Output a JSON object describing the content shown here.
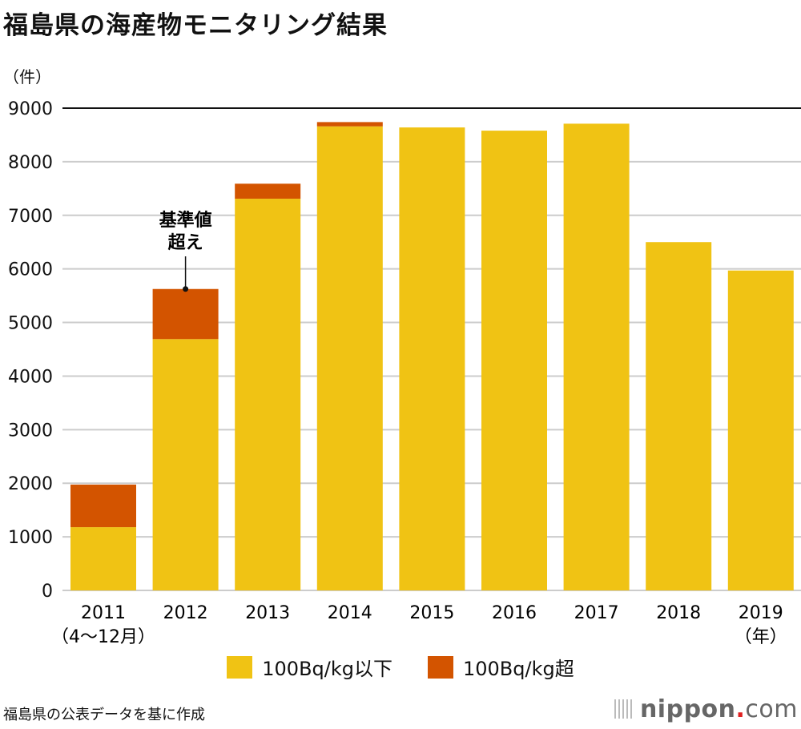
{
  "title": "福島県の海産物モニタリング結果",
  "unit_label": "（件）",
  "source": "福島県の公表データを基に作成",
  "logo": {
    "name": "nippon",
    "dot": ".",
    "tld": "com"
  },
  "chart_data": {
    "type": "bar",
    "stacked": true,
    "title": "福島県の海産物モニタリング結果",
    "ylabel": "（件）",
    "xlabel": "（年）",
    "ylim": [
      0,
      9000
    ],
    "yticks": [
      0,
      1000,
      2000,
      3000,
      4000,
      5000,
      6000,
      7000,
      8000,
      9000
    ],
    "grid": true,
    "categories": [
      "2011",
      "2012",
      "2013",
      "2014",
      "2015",
      "2016",
      "2017",
      "2018",
      "2019"
    ],
    "category_sublabels": {
      "2011": "（4〜12月）",
      "2019": "（年）"
    },
    "series": [
      {
        "name": "100Bq/kg以下",
        "color": "#f0c314",
        "values": [
          1180,
          4690,
          7310,
          8660,
          8640,
          8580,
          8710,
          6500,
          5970
        ]
      },
      {
        "name": "100Bq/kg超",
        "color": "#d35400",
        "values": [
          795,
          935,
          280,
          80,
          0,
          0,
          0,
          0,
          0
        ]
      }
    ],
    "annotation": {
      "text_line1": "基準値",
      "text_line2": "超え",
      "target": "2012"
    },
    "legend_position": "bottom"
  }
}
